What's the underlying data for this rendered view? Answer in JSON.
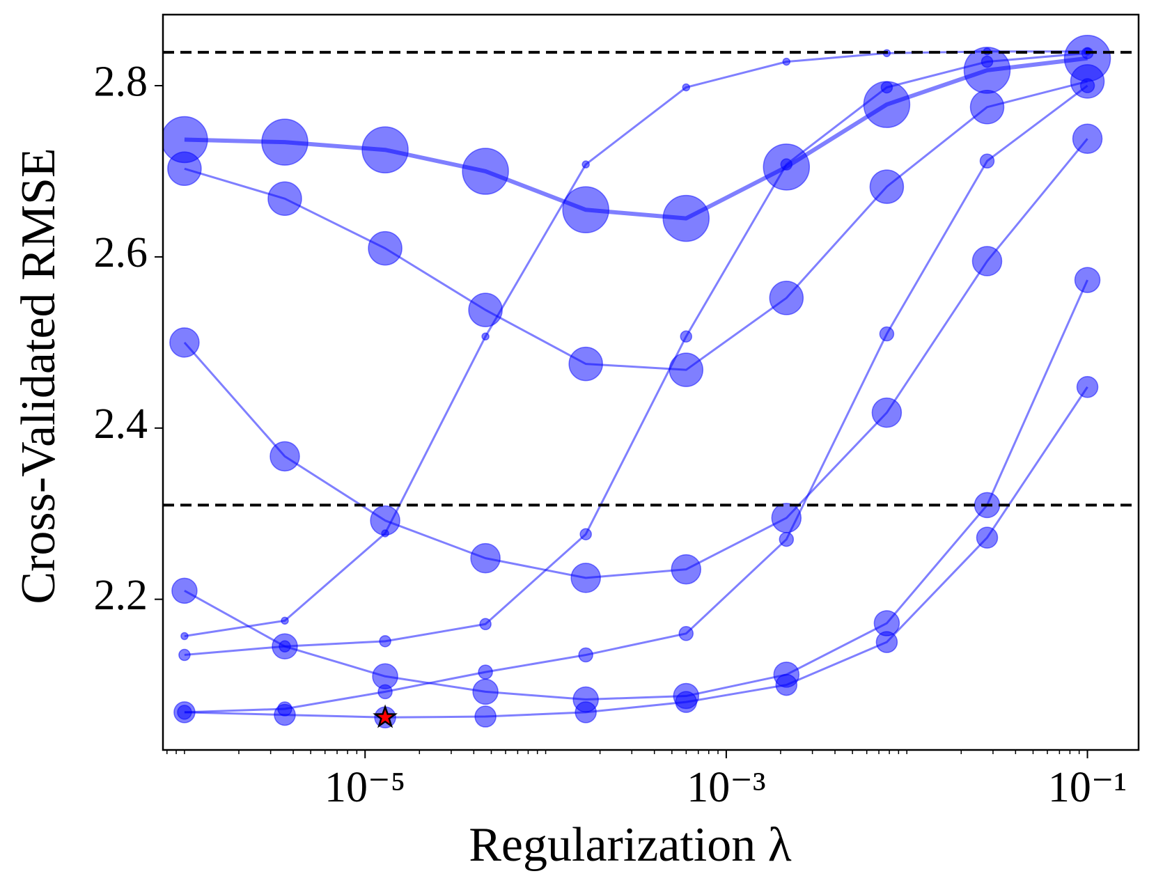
{
  "chart_data": {
    "type": "line",
    "xlabel": "Regularization λ",
    "ylabel": "Cross-Validated RMSE",
    "xscale": "log",
    "x": [
      1e-06,
      3.594e-06,
      1.292e-05,
      4.642e-05,
      0.0001668,
      0.0005995,
      0.002154,
      0.007743,
      0.02783,
      0.1
    ],
    "xlim": [
      7.6e-07,
      0.192
    ],
    "xticks": [
      {
        "value": 1e-05,
        "label": "10⁻⁵"
      },
      {
        "value": 0.001,
        "label": "10⁻³"
      },
      {
        "value": 0.1,
        "label": "10⁻¹"
      }
    ],
    "ylim": [
      2.024,
      2.883
    ],
    "yticks": [
      2.2,
      2.4,
      2.6,
      2.8
    ],
    "color": "#0000ff",
    "alpha": 0.5,
    "series": [
      {
        "values": [
          2.737,
          2.734,
          2.725,
          2.7,
          2.655,
          2.645,
          2.705,
          2.778,
          2.818,
          2.832
        ],
        "marker_size": 33,
        "line_width": 6
      },
      {
        "values": [
          2.703,
          2.668,
          2.61,
          2.538,
          2.475,
          2.468,
          2.552,
          2.682,
          2.775,
          2.805
        ],
        "marker_size": 24,
        "line_width": 3
      },
      {
        "values": [
          2.5,
          2.367,
          2.292,
          2.248,
          2.225,
          2.235,
          2.295,
          2.418,
          2.595,
          2.738
        ],
        "marker_size": 21,
        "line_width": 3
      },
      {
        "values": [
          2.157,
          2.175,
          2.277,
          2.507,
          2.708,
          2.798,
          2.828,
          2.838,
          2.84,
          2.84
        ],
        "marker_size": 5,
        "line_width": 3
      },
      {
        "values": [
          2.135,
          2.145,
          2.151,
          2.171,
          2.276,
          2.507,
          2.708,
          2.798,
          2.828,
          2.838
        ],
        "marker_size": 8,
        "line_width": 3
      },
      {
        "values": [
          2.068,
          2.072,
          2.092,
          2.115,
          2.135,
          2.16,
          2.27,
          2.51,
          2.712,
          2.8
        ],
        "marker_size": 10,
        "line_width": 3
      },
      {
        "values": [
          2.21,
          2.145,
          2.11,
          2.092,
          2.083,
          2.087,
          2.112,
          2.172,
          2.31,
          2.573
        ],
        "marker_size": 18,
        "line_width": 3
      },
      {
        "values": [
          2.068,
          2.065,
          2.062,
          2.063,
          2.068,
          2.08,
          2.1,
          2.15,
          2.272,
          2.448
        ],
        "marker_size": 15,
        "line_width": 3
      }
    ],
    "hlines": [
      2.839,
      2.31
    ],
    "best": {
      "x": 1.292e-05,
      "y": 2.062,
      "color": "#ff0000"
    }
  }
}
